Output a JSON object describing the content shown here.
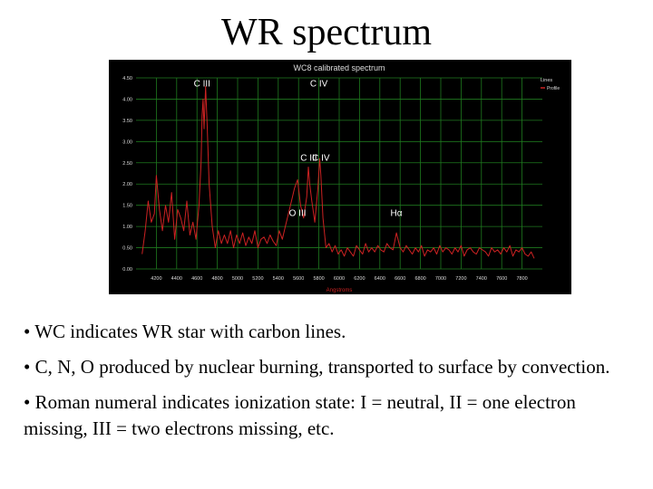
{
  "slide": {
    "title": "WR spectrum",
    "bullets": [
      "• WC indicates WR star with carbon lines.",
      "• C, N, O produced by nuclear burning, transported to surface by convection.",
      "• Roman numeral indicates ionization state: I = neutral, II = one electron missing, III = two electrons missing, etc."
    ]
  },
  "chart_data": {
    "type": "line",
    "title": "WC8 calibrated spectrum",
    "xlabel": "Angstroms",
    "ylabel": "",
    "xlim": [
      4000,
      8000
    ],
    "ylim": [
      0,
      4.5
    ],
    "xticks": [
      4200,
      4400,
      4600,
      4800,
      5000,
      5200,
      5400,
      5600,
      5800,
      6000,
      6200,
      6400,
      6600,
      6800,
      7000,
      7200,
      7400,
      7600,
      7800
    ],
    "yticks": [
      0.0,
      0.5,
      1.0,
      1.5,
      2.0,
      2.5,
      3.0,
      3.5,
      4.0,
      4.5
    ],
    "ytick_labels": [
      "0.00",
      "0.50",
      "1.00",
      "1.50",
      "2.00",
      "2.50",
      "3.00",
      "3.50",
      "4.00",
      "4.50"
    ],
    "grid": true,
    "legend": {
      "title": "Lines",
      "placement": "top-right",
      "entries": [
        {
          "name": "Profile",
          "color": "#cc2222"
        }
      ]
    },
    "colors": {
      "background": "#000000",
      "grid": "#1f7a1f",
      "line": "#cc2222",
      "text": "#dddddd",
      "xlabel": "#cc2222"
    },
    "annotations": [
      {
        "text": "C III",
        "x": 4650,
        "y": 4.3
      },
      {
        "text": "C IV",
        "x": 5800,
        "y": 4.3
      },
      {
        "text": "C III",
        "x": 5700,
        "y": 2.55
      },
      {
        "text": "C IV",
        "x": 5820,
        "y": 2.55
      },
      {
        "text": "O III",
        "x": 5590,
        "y": 1.25
      },
      {
        "text": "Hα",
        "x": 6563,
        "y": 1.25
      }
    ],
    "series": [
      {
        "name": "Profile",
        "x": [
          4060,
          4090,
          4120,
          4150,
          4180,
          4200,
          4230,
          4260,
          4290,
          4320,
          4350,
          4380,
          4410,
          4440,
          4470,
          4500,
          4530,
          4560,
          4590,
          4620,
          4640,
          4650,
          4660,
          4670,
          4685,
          4700,
          4720,
          4750,
          4780,
          4810,
          4840,
          4870,
          4900,
          4930,
          4960,
          4990,
          5020,
          5050,
          5080,
          5110,
          5140,
          5170,
          5200,
          5230,
          5260,
          5290,
          5320,
          5350,
          5380,
          5410,
          5440,
          5470,
          5500,
          5530,
          5560,
          5590,
          5620,
          5650,
          5680,
          5696,
          5710,
          5730,
          5760,
          5790,
          5808,
          5820,
          5840,
          5870,
          5900,
          5930,
          5960,
          5990,
          6020,
          6050,
          6080,
          6110,
          6140,
          6170,
          6200,
          6230,
          6260,
          6290,
          6320,
          6350,
          6380,
          6410,
          6440,
          6470,
          6500,
          6530,
          6563,
          6600,
          6630,
          6660,
          6690,
          6720,
          6750,
          6780,
          6810,
          6840,
          6870,
          6900,
          6930,
          6960,
          6990,
          7020,
          7050,
          7080,
          7110,
          7140,
          7170,
          7200,
          7230,
          7260,
          7290,
          7320,
          7350,
          7380,
          7410,
          7440,
          7470,
          7500,
          7530,
          7560,
          7590,
          7620,
          7650,
          7680,
          7710,
          7740,
          7770,
          7800,
          7830,
          7860,
          7890,
          7920
        ],
        "y": [
          0.35,
          0.9,
          1.6,
          1.1,
          1.3,
          2.2,
          1.4,
          0.9,
          1.5,
          1.1,
          1.8,
          0.7,
          1.4,
          1.2,
          0.9,
          1.6,
          0.8,
          1.1,
          0.7,
          1.5,
          2.5,
          3.6,
          4.0,
          3.3,
          4.3,
          3.4,
          2.0,
          1.0,
          0.5,
          0.9,
          0.6,
          0.8,
          0.6,
          0.9,
          0.5,
          0.8,
          0.6,
          0.85,
          0.55,
          0.75,
          0.6,
          0.9,
          0.5,
          0.7,
          0.75,
          0.6,
          0.8,
          0.65,
          0.55,
          0.9,
          0.7,
          1.0,
          1.3,
          1.6,
          1.9,
          2.1,
          1.5,
          1.2,
          1.7,
          2.4,
          2.0,
          1.6,
          1.1,
          1.9,
          2.6,
          2.2,
          1.2,
          0.5,
          0.6,
          0.4,
          0.55,
          0.35,
          0.45,
          0.3,
          0.5,
          0.4,
          0.3,
          0.55,
          0.45,
          0.35,
          0.6,
          0.4,
          0.5,
          0.4,
          0.55,
          0.45,
          0.4,
          0.6,
          0.5,
          0.45,
          0.85,
          0.5,
          0.4,
          0.55,
          0.45,
          0.35,
          0.5,
          0.4,
          0.55,
          0.3,
          0.45,
          0.4,
          0.5,
          0.35,
          0.55,
          0.4,
          0.5,
          0.45,
          0.35,
          0.5,
          0.4,
          0.55,
          0.3,
          0.45,
          0.5,
          0.4,
          0.35,
          0.5,
          0.45,
          0.4,
          0.3,
          0.5,
          0.4,
          0.45,
          0.35,
          0.5,
          0.4,
          0.55,
          0.3,
          0.45,
          0.4,
          0.5,
          0.35,
          0.3,
          0.4,
          0.25
        ]
      }
    ]
  }
}
